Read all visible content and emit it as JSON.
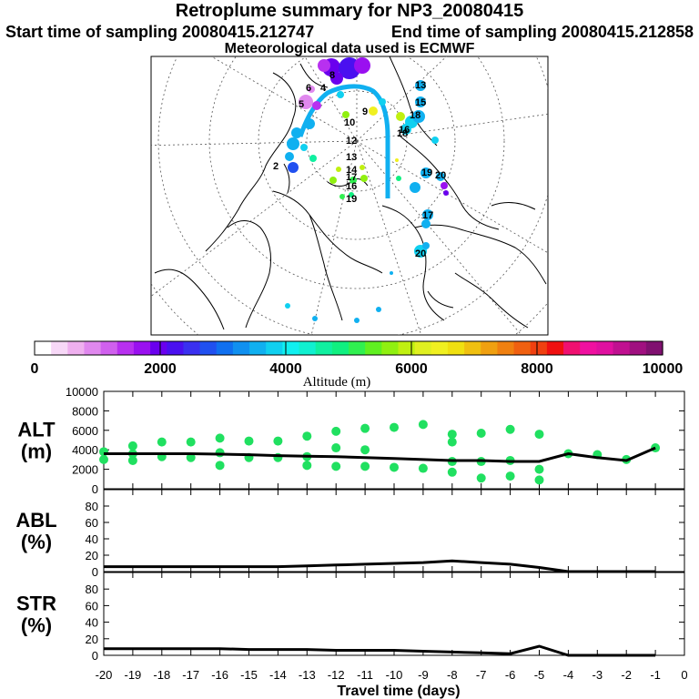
{
  "header": {
    "title": "Retroplume summary for NP3_20080415",
    "start_label": "Start time of sampling 20080415.212747",
    "end_label": "End time of sampling 20080415.212858",
    "met_label": "Meteorological data used is ECMWF"
  },
  "colorbar": {
    "label": "Altitude  (m)",
    "ticks": [
      "0",
      "2000",
      "4000",
      "6000",
      "8000",
      "10000"
    ],
    "colors": [
      "#ffffff",
      "#f7d8f7",
      "#efb0ef",
      "#e088ee",
      "#d060ee",
      "#b830f0",
      "#9a10f0",
      "#6a00ee",
      "#4a10f0",
      "#3a30f0",
      "#2050f0",
      "#1070f0",
      "#1090f0",
      "#10b0f0",
      "#10d0f0",
      "#10f0f0",
      "#10f0d0",
      "#10f0a0",
      "#10f080",
      "#30f050",
      "#60f020",
      "#90f010",
      "#c0f010",
      "#e0f020",
      "#f0f020",
      "#f0e010",
      "#f0c010",
      "#f0a010",
      "#f08010",
      "#f06010",
      "#f04010",
      "#f01010",
      "#f01070",
      "#f010a0",
      "#e010a0",
      "#c01090",
      "#a01080",
      "#801070"
    ]
  },
  "chart_data": [
    {
      "type": "line",
      "name": "ALT",
      "ylabel": "ALT\n(m)",
      "ylabel_lines": [
        "ALT",
        "(m)"
      ],
      "ylim": [
        0,
        10000
      ],
      "yticks": [
        "0",
        "2000",
        "4000",
        "6000",
        "8000",
        "10000"
      ],
      "x": [
        -20,
        -19,
        -18,
        -17,
        -16,
        -15,
        -14,
        -13,
        -12,
        -11,
        -10,
        -9,
        -8,
        -7,
        -6,
        -5,
        -4,
        -3,
        -2,
        -1
      ],
      "values": [
        3600,
        3600,
        3600,
        3600,
        3550,
        3500,
        3400,
        3350,
        3300,
        3200,
        3100,
        3000,
        2900,
        2900,
        2800,
        2800,
        3600,
        3200,
        2900,
        4200
      ],
      "scatter": [
        {
          "x": -20,
          "y": 3800
        },
        {
          "x": -20,
          "y": 3000
        },
        {
          "x": -19,
          "y": 4400
        },
        {
          "x": -19,
          "y": 3600
        },
        {
          "x": -19,
          "y": 2900
        },
        {
          "x": -18,
          "y": 4800
        },
        {
          "x": -18,
          "y": 3300
        },
        {
          "x": -17,
          "y": 4800
        },
        {
          "x": -17,
          "y": 3200
        },
        {
          "x": -16,
          "y": 5200
        },
        {
          "x": -16,
          "y": 3700
        },
        {
          "x": -16,
          "y": 2400
        },
        {
          "x": -15,
          "y": 4900
        },
        {
          "x": -15,
          "y": 3200
        },
        {
          "x": -14,
          "y": 4900
        },
        {
          "x": -14,
          "y": 3200
        },
        {
          "x": -13,
          "y": 5400
        },
        {
          "x": -13,
          "y": 3300
        },
        {
          "x": -13,
          "y": 2400
        },
        {
          "x": -12,
          "y": 5900
        },
        {
          "x": -12,
          "y": 4200
        },
        {
          "x": -12,
          "y": 2300
        },
        {
          "x": -11,
          "y": 6200
        },
        {
          "x": -11,
          "y": 4000
        },
        {
          "x": -11,
          "y": 2300
        },
        {
          "x": -10,
          "y": 6300
        },
        {
          "x": -10,
          "y": 2200
        },
        {
          "x": -9,
          "y": 6600
        },
        {
          "x": -9,
          "y": 2100
        },
        {
          "x": -8,
          "y": 5600
        },
        {
          "x": -8,
          "y": 4800
        },
        {
          "x": -8,
          "y": 2800
        },
        {
          "x": -8,
          "y": 1700
        },
        {
          "x": -7,
          "y": 5700
        },
        {
          "x": -7,
          "y": 2800
        },
        {
          "x": -7,
          "y": 1100
        },
        {
          "x": -6,
          "y": 6100
        },
        {
          "x": -6,
          "y": 2900
        },
        {
          "x": -6,
          "y": 1300
        },
        {
          "x": -5,
          "y": 5600
        },
        {
          "x": -5,
          "y": 2000
        },
        {
          "x": -5,
          "y": 900
        },
        {
          "x": -4,
          "y": 3600
        },
        {
          "x": -3,
          "y": 3500
        },
        {
          "x": -2,
          "y": 3000
        },
        {
          "x": -1,
          "y": 4200
        }
      ]
    },
    {
      "type": "line",
      "name": "ABL",
      "ylabel": "ABL\n(%)",
      "ylabel_lines": [
        "ABL",
        "(%)"
      ],
      "ylim": [
        0,
        100
      ],
      "yticks": [
        "0",
        "20",
        "40",
        "60",
        "80"
      ],
      "x": [
        -20,
        -19,
        -18,
        -17,
        -16,
        -15,
        -14,
        -13,
        -12,
        -11,
        -10,
        -9,
        -8,
        -7,
        -6,
        -5,
        -4,
        -3,
        -2,
        -1
      ],
      "values": [
        6,
        6,
        6,
        6,
        6,
        6,
        6,
        7,
        8,
        9,
        10,
        11,
        13,
        11,
        9,
        5,
        0,
        0,
        0,
        0
      ]
    },
    {
      "type": "line",
      "name": "STR",
      "ylabel": "STR\n(%)",
      "ylabel_lines": [
        "STR",
        "(%)"
      ],
      "ylim": [
        0,
        100
      ],
      "yticks": [
        "0",
        "20",
        "40",
        "60",
        "80"
      ],
      "x": [
        -20,
        -19,
        -18,
        -17,
        -16,
        -15,
        -14,
        -13,
        -12,
        -11,
        -10,
        -9,
        -8,
        -7,
        -6,
        -5,
        -4,
        -3,
        -2,
        -1
      ],
      "values": [
        8,
        8,
        8,
        8,
        8,
        7,
        7,
        7,
        6,
        6,
        6,
        5,
        4,
        3,
        2,
        11,
        0,
        0,
        0,
        0
      ]
    }
  ],
  "xaxis": {
    "label": "Travel time (days)",
    "ticks": [
      "-20",
      "-19",
      "-18",
      "-17",
      "-16",
      "-15",
      "-14",
      "-13",
      "-12",
      "-11",
      "-10",
      "-9",
      "-8",
      "-7",
      "-6",
      "-5",
      "-4",
      "-3",
      "-2",
      "-1",
      "0"
    ],
    "xlim": [
      -20,
      0
    ]
  },
  "map": {
    "labels": [
      {
        "t": "13",
        "c": "#10d0f0"
      },
      {
        "t": "15",
        "c": "#10d0f0"
      },
      {
        "t": "8",
        "c": "#9a10f0"
      },
      {
        "t": "10",
        "c": "#f0f020"
      },
      {
        "t": "9",
        "c": "#f0f020"
      },
      {
        "t": "6",
        "c": "#e088ee"
      },
      {
        "t": "5",
        "c": "#e088ee"
      },
      {
        "t": "4",
        "c": "#9a10f0"
      },
      {
        "t": "12",
        "c": "#10f0a0"
      },
      {
        "t": "13",
        "c": "#10f0a0"
      },
      {
        "t": "14",
        "c": "#90f010"
      },
      {
        "t": "16",
        "c": "#10f080"
      },
      {
        "t": "18",
        "c": "#10f0a0"
      },
      {
        "t": "17",
        "c": "#30f050"
      },
      {
        "t": "19",
        "c": "#10d0f0"
      },
      {
        "t": "20",
        "c": "#2050f0"
      },
      {
        "t": "16",
        "c": "#10d0f0"
      },
      {
        "t": "18",
        "c": "#10d0f0"
      },
      {
        "t": "17",
        "c": "#10d0f0"
      },
      {
        "t": "20",
        "c": "#10d0f0"
      },
      {
        "t": "2",
        "c": "#10d0f0"
      },
      {
        "t": "19",
        "c": "#10b0f0"
      }
    ]
  }
}
